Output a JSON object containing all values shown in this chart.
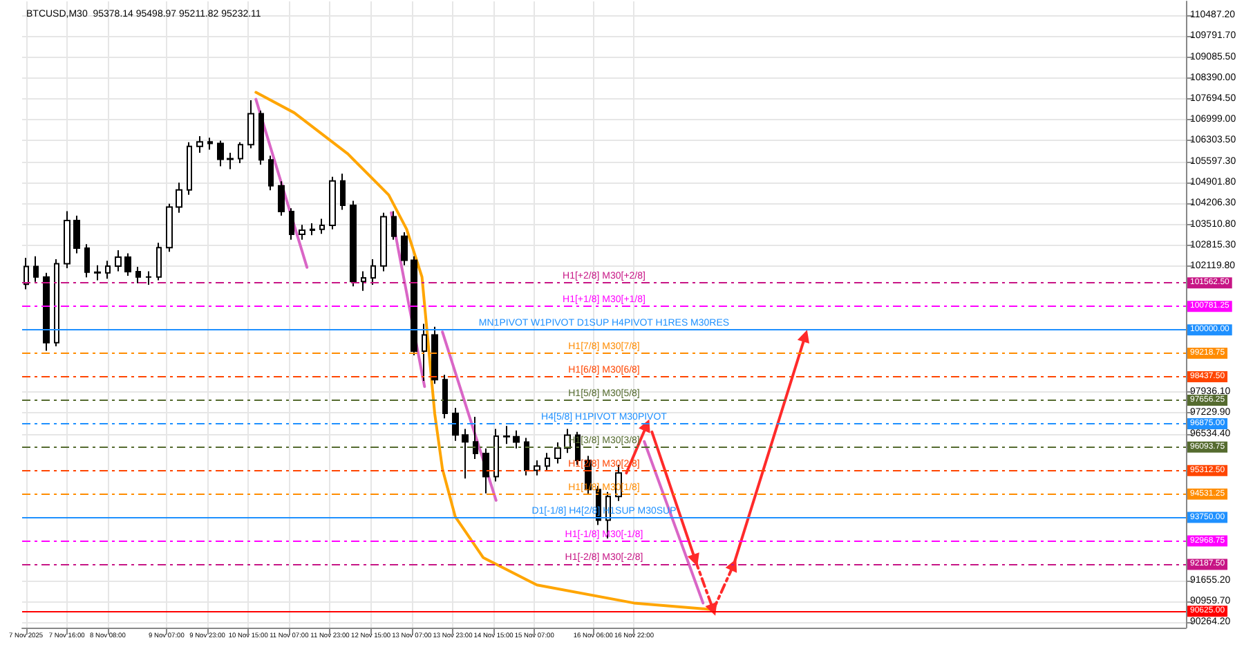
{
  "chart_data": {
    "type": "candlestick",
    "title": "BTCUSD,M30  95378.14 95498.97 95211.82 95232.11",
    "xlim": [
      "2025-11-06T22:30",
      "2025-11-25T22:00"
    ],
    "xticks": [
      {
        "value": "2025-11-07T00:00",
        "label": "7 Nov 2025"
      },
      {
        "value": "2025-11-07T16:00",
        "label": "7 Nov 16:00"
      },
      {
        "value": "2025-11-08T08:00",
        "label": "8 Nov 08:00"
      },
      {
        "value": "2025-11-09T07:00",
        "label": "9 Nov 07:00"
      },
      {
        "value": "2025-11-09T23:00",
        "label": "9 Nov 23:00"
      },
      {
        "value": "2025-11-10T15:00",
        "label": "10 Nov 15:00"
      },
      {
        "value": "2025-11-11T07:00",
        "label": "11 Nov 07:00"
      },
      {
        "value": "2025-11-11T23:00",
        "label": "11 Nov 23:00"
      },
      {
        "value": "2025-11-12T15:00",
        "label": "12 Nov 15:00"
      },
      {
        "value": "2025-11-13T07:00",
        "label": "13 Nov 07:00"
      },
      {
        "value": "2025-11-13T23:00",
        "label": "13 Nov 23:00"
      },
      {
        "value": "2025-11-14T15:00",
        "label": "14 Nov 15:00"
      },
      {
        "value": "2025-11-15T07:00",
        "label": "15 Nov 07:00"
      },
      {
        "value": "2025-11-16T06:00",
        "label": "16 Nov 06:00"
      },
      {
        "value": "2025-11-16T22:00",
        "label": "16 Nov 22:00"
      }
    ],
    "ylim": [
      90080,
      110940
    ],
    "yticks": [
      {
        "value": 90264.2,
        "label": "90264.20"
      },
      {
        "value": 90959.7,
        "label": "90959.70"
      },
      {
        "value": 91655.2,
        "label": "91655.20"
      },
      {
        "value": 96534.4,
        "label": "96534.40"
      },
      {
        "value": 97229.9,
        "label": "97229.90"
      },
      {
        "value": 97936.1,
        "label": "97936.10"
      },
      {
        "value": 102119.8,
        "label": "102119.80"
      },
      {
        "value": 102815.3,
        "label": "102815.30"
      },
      {
        "value": 103510.8,
        "label": "103510.80"
      },
      {
        "value": 104206.3,
        "label": "104206.30"
      },
      {
        "value": 104901.8,
        "label": "104901.80"
      },
      {
        "value": 105597.3,
        "label": "105597.30"
      },
      {
        "value": 106303.5,
        "label": "106303.50"
      },
      {
        "value": 106999,
        "label": "106999.00"
      },
      {
        "value": 107694.5,
        "label": "107694.50"
      },
      {
        "value": 108390,
        "label": "108390.00"
      },
      {
        "value": 109085.5,
        "label": "109085.50"
      },
      {
        "value": 109791.7,
        "label": "109791.70"
      },
      {
        "value": 110487.2,
        "label": "110487.20"
      }
    ],
    "grid": true,
    "annotations": [
      "101562.50",
      "100781.25",
      "100000.00",
      "99218.75",
      "98437.50",
      "97656.25",
      "96875.00",
      "96093.75",
      "95312.50",
      "94531.25",
      "93750.00",
      "92968.75",
      "92187.50",
      "90625.00"
    ],
    "series": [
      {
        "color": "#000000",
        "x": [
          "2025-11-07T00:00",
          "2025-11-07T04:00",
          "2025-11-07T08:00",
          "2025-11-07T12:00",
          "2025-11-07T16:00",
          "2025-11-07T20:00",
          "2025-11-08T00:00",
          "2025-11-08T04:00",
          "2025-11-08T08:00",
          "2025-11-08T12:00",
          "2025-11-08T16:00",
          "2025-11-08T20:00",
          "2025-11-09T00:00",
          "2025-11-09T04:00",
          "2025-11-09T08:00",
          "2025-11-09T12:00",
          "2025-11-09T16:00",
          "2025-11-09T20:00",
          "2025-11-10T00:00",
          "2025-11-10T04:00",
          "2025-11-10T08:00",
          "2025-11-10T12:00",
          "2025-11-10T16:00",
          "2025-11-10T20:00",
          "2025-11-11T00:00",
          "2025-11-11T04:00",
          "2025-11-11T08:00",
          "2025-11-11T12:00",
          "2025-11-11T16:00",
          "2025-11-11T20:00",
          "2025-11-12T00:00",
          "2025-11-12T04:00",
          "2025-11-12T08:00",
          "2025-11-12T12:00",
          "2025-11-12T16:00",
          "2025-11-12T20:00",
          "2025-11-13T00:00",
          "2025-11-13T04:00",
          "2025-11-13T08:00",
          "2025-11-13T12:00",
          "2025-11-13T16:00",
          "2025-11-13T20:00",
          "2025-11-14T00:00",
          "2025-11-14T04:00",
          "2025-11-14T08:00",
          "2025-11-14T12:00",
          "2025-11-14T16:00",
          "2025-11-14T20:00",
          "2025-11-15T00:00",
          "2025-11-15T04:00",
          "2025-11-15T08:00",
          "2025-11-15T12:00",
          "2025-11-15T16:00",
          "2025-11-15T20:00",
          "2025-11-16T00:00",
          "2025-11-16T04:00",
          "2025-11-16T08:00",
          "2025-11-16T12:00",
          "2025-11-16T16:00"
        ],
        "ohlc": [
          [
            101520,
            102400,
            101350,
            102110
          ],
          [
            102110,
            102450,
            101600,
            101760
          ],
          [
            101760,
            101900,
            99300,
            99570
          ],
          [
            99570,
            102350,
            99450,
            102200
          ],
          [
            102200,
            103950,
            102050,
            103640
          ],
          [
            103640,
            103800,
            102550,
            102720
          ],
          [
            102720,
            102850,
            101750,
            101920
          ],
          [
            101920,
            102150,
            101650,
            101900
          ],
          [
            101900,
            102300,
            101700,
            102120
          ],
          [
            102120,
            102650,
            101950,
            102420
          ],
          [
            102420,
            102550,
            101800,
            101940
          ],
          [
            101940,
            102100,
            101550,
            101760
          ],
          [
            101760,
            101950,
            101500,
            101760
          ],
          [
            101760,
            102900,
            101650,
            102740
          ],
          [
            102740,
            104200,
            102600,
            104090
          ],
          [
            104090,
            104900,
            103900,
            104660
          ],
          [
            104660,
            106250,
            104500,
            106110
          ],
          [
            106110,
            106450,
            105900,
            106260
          ],
          [
            106260,
            106400,
            106000,
            106210
          ],
          [
            106210,
            106300,
            105450,
            105680
          ],
          [
            105680,
            105900,
            105350,
            105700
          ],
          [
            105700,
            106250,
            105550,
            106170
          ],
          [
            106170,
            107650,
            106050,
            107200
          ],
          [
            107200,
            107300,
            105500,
            105660
          ],
          [
            105660,
            105800,
            104650,
            104800
          ],
          [
            104800,
            104950,
            103800,
            103940
          ],
          [
            103940,
            104050,
            103000,
            103180
          ],
          [
            103180,
            103500,
            103000,
            103320
          ],
          [
            103320,
            103550,
            103150,
            103350
          ],
          [
            103350,
            103700,
            103200,
            103480
          ],
          [
            103480,
            105100,
            103350,
            104960
          ],
          [
            104960,
            105200,
            104000,
            104150
          ],
          [
            104150,
            104300,
            101450,
            101610
          ],
          [
            101610,
            101950,
            101300,
            101730
          ],
          [
            101730,
            102350,
            101500,
            102130
          ],
          [
            102130,
            103900,
            101950,
            103770
          ],
          [
            103770,
            103950,
            103000,
            103120
          ],
          [
            103120,
            103250,
            102150,
            102320
          ],
          [
            102320,
            102450,
            99150,
            99290
          ],
          [
            99290,
            100200,
            98300,
            99830
          ],
          [
            99830,
            100100,
            98200,
            98340
          ],
          [
            98340,
            98500,
            97050,
            97220
          ],
          [
            97220,
            97400,
            96300,
            96500
          ],
          [
            96500,
            96700,
            95050,
            96270
          ],
          [
            96270,
            97100,
            95700,
            95880
          ],
          [
            95880,
            96050,
            94550,
            95110
          ],
          [
            95110,
            96700,
            94950,
            96460
          ],
          [
            96460,
            96800,
            96200,
            96440
          ],
          [
            96440,
            96650,
            96050,
            96260
          ],
          [
            96260,
            96400,
            95150,
            95320
          ],
          [
            95320,
            95650,
            95150,
            95460
          ],
          [
            95460,
            95900,
            95300,
            95720
          ],
          [
            95720,
            96250,
            95550,
            96060
          ],
          [
            96060,
            96700,
            95900,
            96490
          ],
          [
            96490,
            96600,
            95500,
            95650
          ],
          [
            95650,
            95800,
            94500,
            94680
          ],
          [
            94680,
            94800,
            93500,
            93660
          ],
          [
            93660,
            94600,
            93050,
            94450
          ],
          [
            94450,
            95500,
            94300,
            95232.11
          ]
        ]
      },
      {
        "type": "line",
        "color": "#ffa500",
        "line_style": "solid",
        "marker": "none",
        "x": [
          "2025-11-10T18:00",
          "2025-11-11T09:00",
          "2025-11-12T06:00",
          "2025-11-12T22:00",
          "2025-11-13T05:00",
          "2025-11-13T11:00",
          "2025-11-13T13:00",
          "2025-11-13T16:00",
          "2025-11-13T19:00",
          "2025-11-14T00:00",
          "2025-11-14T11:00",
          "2025-11-15T08:00",
          "2025-11-16T22:00",
          "2025-11-18T05:00"
        ],
        "values": [
          107910,
          107230,
          105860,
          104490,
          103350,
          101760,
          99930,
          97200,
          95370,
          93780,
          92410,
          91500,
          90900,
          90680
        ]
      },
      {
        "type": "line",
        "color": "#d966c6",
        "line_style": "solid",
        "marker": "none",
        "x": [
          "2025-11-10T18:00",
          "2025-11-11T14:00"
        ],
        "values": [
          107680,
          102080
        ]
      },
      {
        "type": "line",
        "color": "#d966c6",
        "line_style": "solid",
        "marker": "none",
        "x": [
          "2025-11-12T23:00",
          "2025-11-13T12:00"
        ],
        "values": [
          103900,
          98110
        ]
      },
      {
        "type": "line",
        "color": "#d966c6",
        "line_style": "solid",
        "marker": "none",
        "x": [
          "2025-11-13T19:00",
          "2025-11-14T16:00"
        ],
        "values": [
          99930,
          94320
        ]
      },
      {
        "type": "line",
        "color": "#d966c6",
        "line_style": "solid",
        "marker": "none",
        "x": [
          "2025-11-17T02:00",
          "2025-11-18T01:00"
        ],
        "values": [
          96280,
          90900
        ]
      },
      {
        "type": "line",
        "color": "#ff2a2a",
        "line_style": "solid",
        "marker": "triangle",
        "x": [
          "2025-11-16T19:00",
          "2025-11-17T03:00"
        ],
        "values": [
          95230,
          96830
        ]
      },
      {
        "type": "line",
        "color": "#ff2a2a",
        "line_style": "solid",
        "marker": "triangle",
        "x": [
          "2025-11-17T05:00",
          "2025-11-17T22:00"
        ],
        "values": [
          96600,
          92320
        ]
      },
      {
        "type": "line",
        "color": "#ff2a2a",
        "line_style": "dashed",
        "marker": "triangle",
        "x": [
          "2025-11-17T22:00",
          "2025-11-18T05:00"
        ],
        "values": [
          92320,
          90670
        ]
      },
      {
        "type": "line",
        "color": "#ff2a2a",
        "line_style": "dashed",
        "marker": "triangle",
        "x": [
          "2025-11-18T05:00",
          "2025-11-18T13:00"
        ],
        "values": [
          90670,
          92180
        ]
      },
      {
        "type": "line",
        "color": "#ff2a2a",
        "line_style": "solid",
        "marker": "triangle",
        "x": [
          "2025-11-18T13:00",
          "2025-11-19T17:00"
        ],
        "values": [
          92180,
          99800
        ]
      }
    ],
    "ref_lines": [
      {
        "axis": "y",
        "value": 101562.5,
        "label": "H1[+2/8] M30[+2/8]",
        "color": "#c71585",
        "line_style": "dashed"
      },
      {
        "axis": "y",
        "value": 100781.25,
        "label": "H1[+1/8] M30[+1/8]",
        "color": "#ff00ff",
        "line_style": "dashed"
      },
      {
        "axis": "y",
        "value": 100000,
        "label": "MN1PIVOT W1PIVOT D1SUP H4PIVOT H1RES M30RES",
        "color": "#1e90ff",
        "line_style": "solid"
      },
      {
        "axis": "y",
        "value": 99218.75,
        "label": "H1[7/8] M30[7/8]",
        "color": "#ff8c00",
        "line_style": "dashed"
      },
      {
        "axis": "y",
        "value": 98437.5,
        "label": "H1[6/8] M30[6/8]",
        "color": "#ff4500",
        "line_style": "dashed"
      },
      {
        "axis": "y",
        "value": 97656.25,
        "label": "H1[5/8] M30[5/8]",
        "color": "#556b2f",
        "line_style": "dashed"
      },
      {
        "axis": "y",
        "value": 96875,
        "label": "H4[5/8] H1PIVOT M30PIVOT",
        "color": "#1e90ff",
        "line_style": "dashed"
      },
      {
        "axis": "y",
        "value": 96093.75,
        "label": "H1[3/8] M30[3/8]",
        "color": "#556b2f",
        "line_style": "dashed"
      },
      {
        "axis": "y",
        "value": 95312.5,
        "label": "H1[2/8] M30[2/8]",
        "color": "#ff4500",
        "line_style": "dashed"
      },
      {
        "axis": "y",
        "value": 94531.25,
        "label": "H1[1/8] M30[1/8]",
        "color": "#ff8c00",
        "line_style": "dashed"
      },
      {
        "axis": "y",
        "value": 93750,
        "label": "D1[-1/8] H4[2/8] H1SUP M30SUP",
        "color": "#1e90ff",
        "line_style": "solid"
      },
      {
        "axis": "y",
        "value": 92968.75,
        "label": "H1[-1/8] M30[-1/8]",
        "color": "#ff00ff",
        "line_style": "dashed"
      },
      {
        "axis": "y",
        "value": 92187.5,
        "label": "H1[-2/8] M30[-2/8]",
        "color": "#c71585",
        "line_style": "dashed"
      },
      {
        "axis": "y",
        "value": 90625,
        "label": null,
        "color": "#ff0000",
        "line_style": "solid"
      }
    ]
  }
}
